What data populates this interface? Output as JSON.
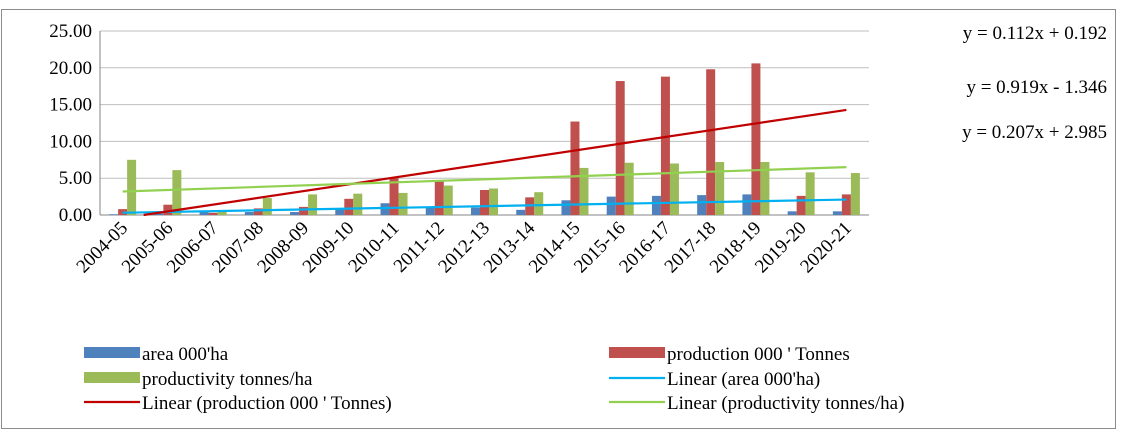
{
  "chart_data": {
    "type": "bar",
    "title": "",
    "xlabel": "",
    "ylabel": "",
    "categories": [
      "2004-05",
      "2005-06",
      "2006-07",
      "2007-08",
      "2008-09",
      "2009-10",
      "2010-11",
      "2011-12",
      "2012-13",
      "2013-14",
      "2014-15",
      "2015-16",
      "2016-17",
      "2017-18",
      "2018-19",
      "2019-20",
      "2020-21"
    ],
    "ylim": [
      0,
      25
    ],
    "yticks": [
      "0.00",
      "5.00",
      "10.00",
      "15.00",
      "20.00",
      "25.00"
    ],
    "grid": "horizontal",
    "legend_position": "bottom",
    "series": [
      {
        "name": "area 000'ha",
        "color": "#4f81bd",
        "values": [
          0.1,
          0.2,
          0.5,
          0.4,
          0.4,
          0.8,
          1.6,
          1.1,
          1.0,
          0.7,
          2.0,
          2.5,
          2.6,
          2.7,
          2.8,
          0.5,
          0.5
        ]
      },
      {
        "name": "production 000 ' Tonnes",
        "color": "#c0504d",
        "values": [
          0.8,
          1.4,
          0.3,
          0.9,
          1.1,
          2.2,
          5.0,
          4.6,
          3.4,
          2.4,
          12.7,
          18.2,
          18.8,
          19.8,
          20.6,
          2.6,
          2.8
        ]
      },
      {
        "name": "productivity tonnes/ha",
        "color": "#9bbb59",
        "values": [
          7.5,
          6.1,
          0.5,
          2.3,
          2.8,
          2.9,
          3.0,
          4.0,
          3.6,
          3.1,
          6.4,
          7.1,
          7.0,
          7.2,
          7.2,
          5.8,
          5.7
        ]
      }
    ],
    "trendlines": [
      {
        "name": "Linear (area 000'ha)",
        "color": "#00b0f0",
        "slope": 0.112,
        "intercept": 0.192,
        "equation": "y = 0.112x + 0.192"
      },
      {
        "name": "Linear (production 000 ' Tonnes)",
        "color": "#c00000",
        "slope": 0.919,
        "intercept": -1.346,
        "equation": "y = 0.919x - 1.346"
      },
      {
        "name": "Linear (productivity tonnes/ha)",
        "color": "#92d050",
        "slope": 0.207,
        "intercept": 2.985,
        "equation": "y = 0.207x + 2.985"
      }
    ],
    "legend": [
      {
        "label": "area 000'ha",
        "kind": "box",
        "color": "#4f81bd"
      },
      {
        "label": "production 000 ' Tonnes",
        "kind": "box",
        "color": "#c0504d"
      },
      {
        "label": "productivity tonnes/ha",
        "kind": "box",
        "color": "#9bbb59"
      },
      {
        "label": "Linear (area 000'ha)",
        "kind": "line",
        "color": "#00b0f0"
      },
      {
        "label": "Linear (production 000 ' Tonnes)",
        "kind": "line",
        "color": "#c00000"
      },
      {
        "label": "Linear (productivity tonnes/ha)",
        "kind": "line",
        "color": "#92d050"
      }
    ]
  }
}
